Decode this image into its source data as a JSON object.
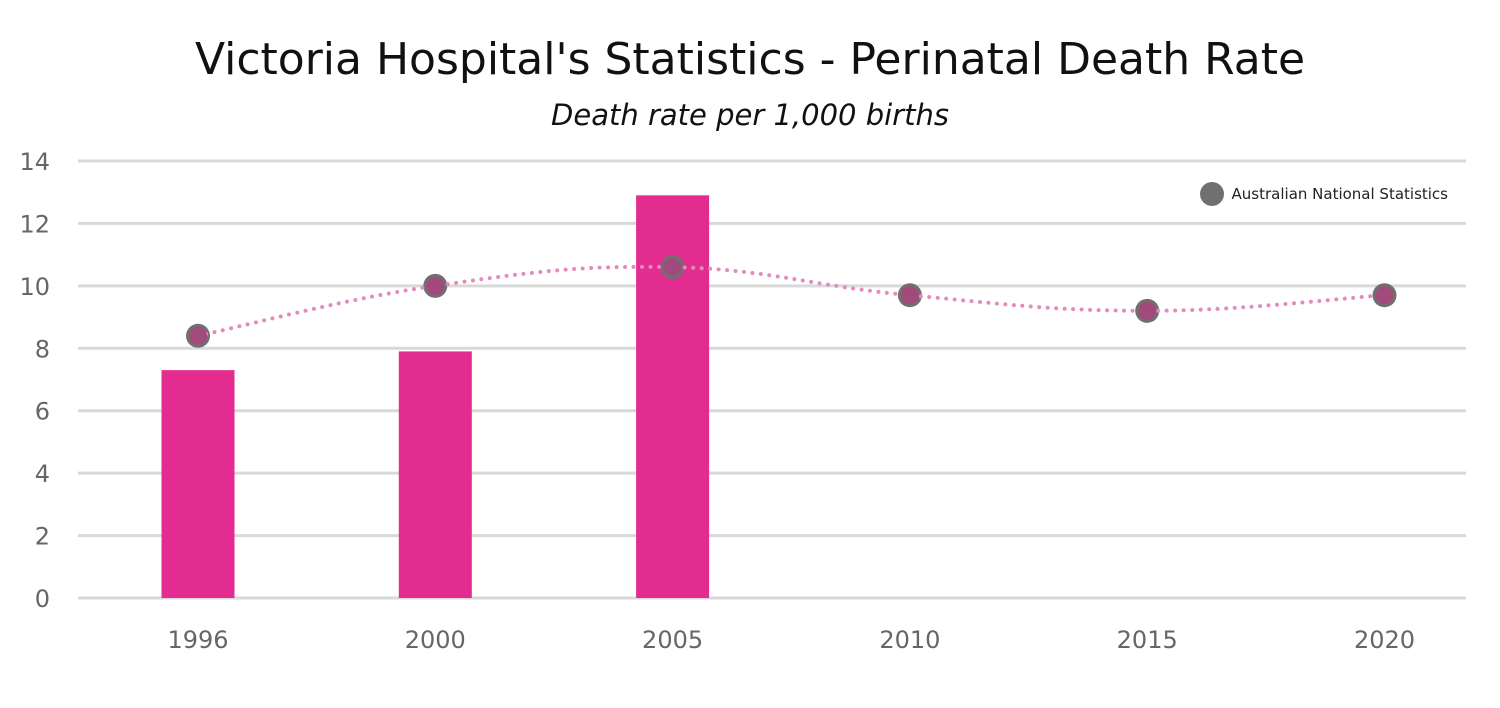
{
  "chart_data": {
    "type": "bar",
    "title": "Victoria Hospital's Statistics - Perinatal Death Rate",
    "subtitle": "Death rate per 1,000 births",
    "xlabel": "",
    "ylabel": "",
    "ylim": [
      0,
      14
    ],
    "yticks": [
      0,
      2,
      4,
      6,
      8,
      10,
      12,
      14
    ],
    "categories": [
      "1996",
      "2000",
      "2005",
      "2010",
      "2015",
      "2020"
    ],
    "grid": true,
    "legend_position": "top-right",
    "series": [
      {
        "type": "bar",
        "values": [
          7.3,
          7.9,
          12.9,
          null,
          null,
          null
        ],
        "color": "#e22c90"
      },
      {
        "type": "line",
        "name": "Australian National Statistics",
        "values": [
          8.4,
          10.0,
          10.6,
          9.7,
          9.2,
          9.7
        ],
        "color": "#707070",
        "line_color": "#e48bbd",
        "line_style": "dotted",
        "smooth": true
      }
    ]
  }
}
